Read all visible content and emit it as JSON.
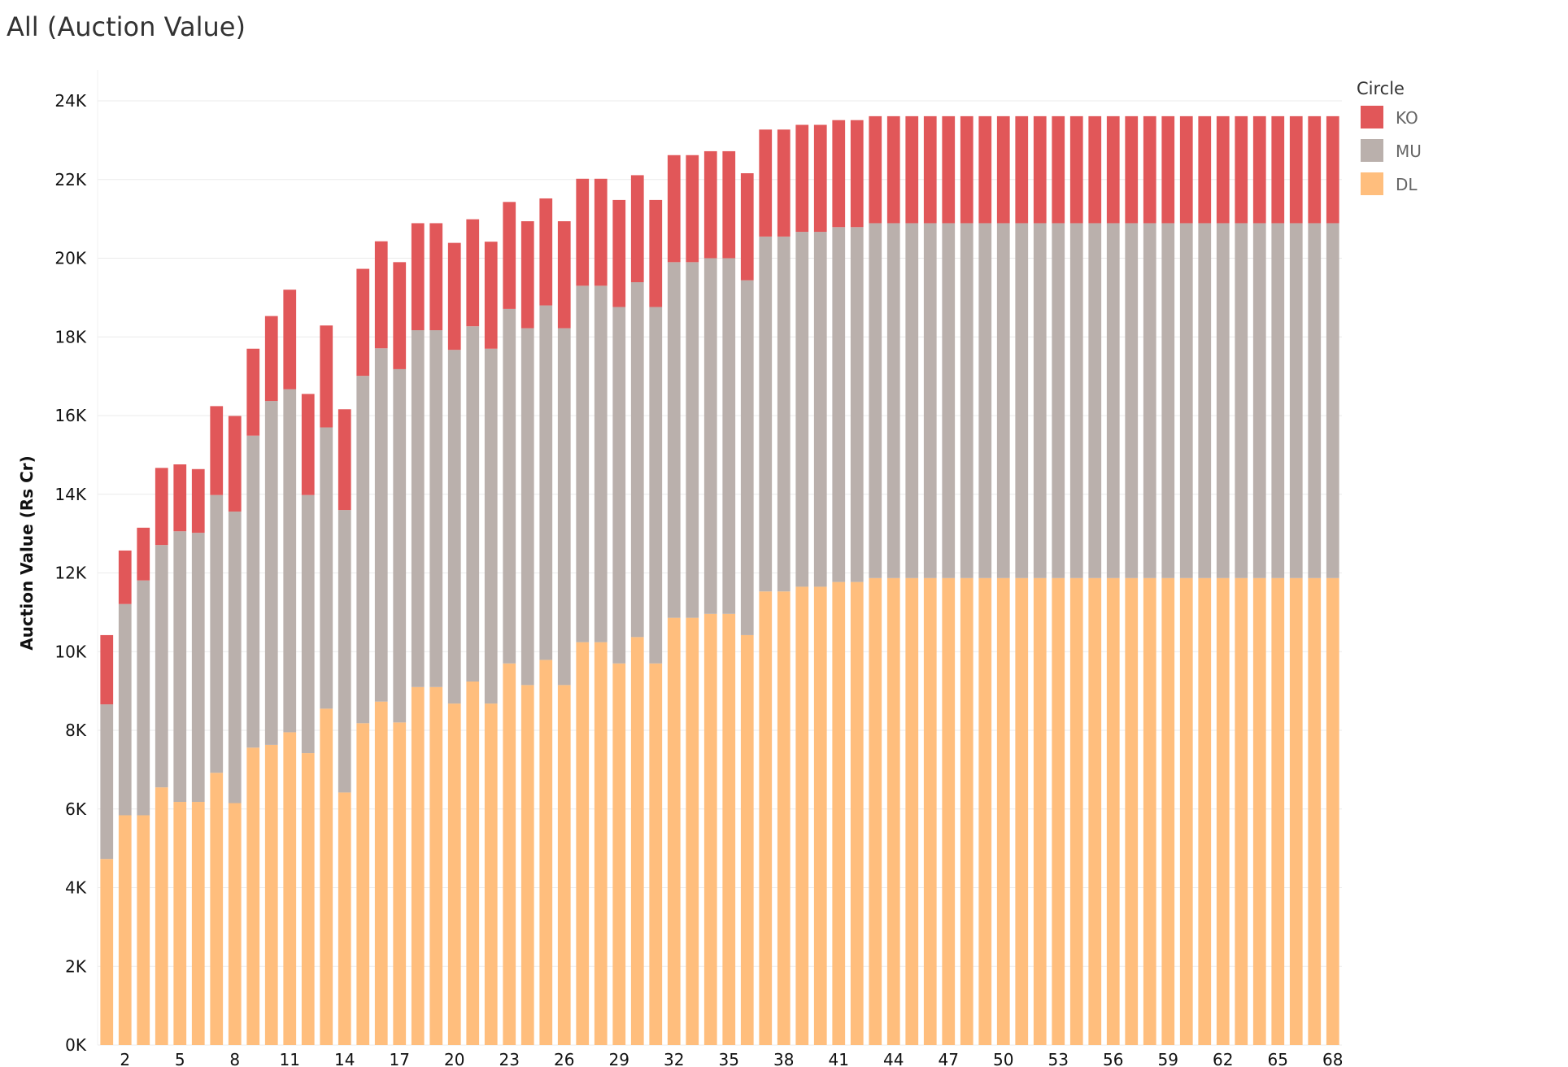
{
  "chart_data": {
    "type": "bar",
    "stacked": true,
    "title": "All (Auction Value)",
    "xlabel": "",
    "ylabel": "Auction Value (Rs Cr)",
    "ylim": [
      0,
      24000
    ],
    "yticks": [
      0,
      2000,
      4000,
      6000,
      8000,
      10000,
      12000,
      14000,
      16000,
      18000,
      20000,
      22000,
      24000
    ],
    "ytick_labels": [
      "0K",
      "2K",
      "4K",
      "6K",
      "8K",
      "10K",
      "12K",
      "14K",
      "16K",
      "18K",
      "20K",
      "22K",
      "24K"
    ],
    "xtick_labels": [
      "2",
      "5",
      "8",
      "11",
      "14",
      "17",
      "20",
      "23",
      "26",
      "29",
      "32",
      "35",
      "38",
      "41",
      "44",
      "47",
      "50",
      "53",
      "56",
      "59",
      "62",
      "65",
      "68"
    ],
    "grid": true,
    "legend": {
      "title": "Circle",
      "position": "top-right"
    },
    "categories": [
      1,
      2,
      3,
      4,
      5,
      6,
      7,
      8,
      9,
      10,
      11,
      12,
      13,
      14,
      15,
      16,
      17,
      18,
      19,
      20,
      21,
      22,
      23,
      24,
      25,
      26,
      27,
      28,
      29,
      30,
      31,
      32,
      33,
      34,
      35,
      36,
      37,
      38,
      39,
      40,
      41,
      42,
      43,
      44,
      45,
      46,
      47,
      48,
      49,
      50,
      51,
      52,
      53,
      54,
      55,
      56,
      57,
      58,
      59,
      60,
      61,
      62,
      63,
      64,
      65,
      66,
      67,
      68
    ],
    "series": [
      {
        "name": "DL",
        "color": "#FFBE7D",
        "values": [
          4730,
          5840,
          5840,
          6550,
          6180,
          6180,
          6920,
          6150,
          7560,
          7630,
          7950,
          7420,
          8550,
          6420,
          8180,
          8730,
          8200,
          9100,
          9100,
          8680,
          9240,
          8680,
          9700,
          9150,
          9790,
          9150,
          10240,
          10240,
          9700,
          10370,
          9700,
          10860,
          10860,
          10960,
          10960,
          10420,
          11530,
          11530,
          11650,
          11650,
          11770,
          11770,
          11870,
          11870,
          11870,
          11870,
          11870,
          11870,
          11870,
          11870,
          11870,
          11870,
          11870,
          11870,
          11870,
          11870,
          11870,
          11870,
          11870,
          11870,
          11870,
          11870,
          11870,
          11870,
          11870,
          11870,
          11870,
          11870
        ]
      },
      {
        "name": "MU",
        "color": "#BAB0AC",
        "values": [
          3930,
          5370,
          5970,
          6160,
          6880,
          6840,
          7060,
          7410,
          7930,
          8740,
          8720,
          6560,
          7150,
          7180,
          8830,
          8980,
          8980,
          9070,
          9070,
          8990,
          9030,
          9020,
          9010,
          9070,
          9010,
          9070,
          9060,
          9060,
          9060,
          9020,
          9060,
          9040,
          9040,
          9040,
          9040,
          9020,
          9020,
          9020,
          9020,
          9020,
          9020,
          9020,
          9020,
          9020,
          9020,
          9020,
          9020,
          9020,
          9020,
          9020,
          9020,
          9020,
          9020,
          9020,
          9020,
          9020,
          9020,
          9020,
          9020,
          9020,
          9020,
          9020,
          9020,
          9020,
          9020,
          9020,
          9020,
          9020
        ]
      },
      {
        "name": "KO",
        "color": "#E15759",
        "values": [
          1760,
          1360,
          1340,
          1960,
          1700,
          1620,
          2260,
          2430,
          2210,
          2160,
          2530,
          2570,
          2590,
          2560,
          2720,
          2720,
          2720,
          2720,
          2720,
          2720,
          2720,
          2720,
          2720,
          2720,
          2720,
          2720,
          2720,
          2720,
          2720,
          2720,
          2720,
          2720,
          2720,
          2720,
          2720,
          2720,
          2720,
          2720,
          2720,
          2720,
          2720,
          2720,
          2720,
          2720,
          2720,
          2720,
          2720,
          2720,
          2720,
          2720,
          2720,
          2720,
          2720,
          2720,
          2720,
          2720,
          2720,
          2720,
          2720,
          2720,
          2720,
          2720,
          2720,
          2720,
          2720,
          2720,
          2720,
          2720
        ]
      }
    ],
    "legend_order": [
      "KO",
      "MU",
      "DL"
    ]
  }
}
